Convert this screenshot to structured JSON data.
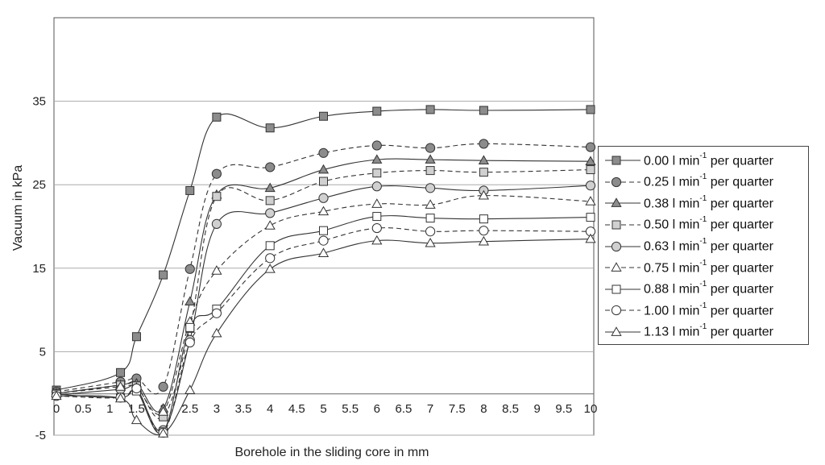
{
  "chart_data": {
    "type": "line",
    "title": "",
    "xlabel": "Borehole in the sliding core in mm",
    "ylabel": "Vacuum in kPa",
    "xlim": [
      0,
      10
    ],
    "ylim": [
      -5,
      45
    ],
    "x_ticks": [
      "0",
      "0.5",
      "1",
      "1.5",
      "2",
      "2.5",
      "3",
      "3.5",
      "4",
      "4.5",
      "5",
      "5.5",
      "6",
      "6.5",
      "7",
      "7.5",
      "8",
      "8.5",
      "9",
      "9.5",
      "10"
    ],
    "y_ticks": [
      "35",
      "25",
      "15",
      "5",
      "-5"
    ],
    "grid": "horizontal",
    "legend_position": "right",
    "x": [
      0,
      1.2,
      1.5,
      2,
      2.5,
      3,
      4,
      5,
      6,
      7,
      8,
      10
    ],
    "series": [
      {
        "name": "0.00 l min-1 per quarter",
        "label_main": "0.00 l min",
        "label_exp": "-1",
        "label_tail": " per quarter",
        "marker": "square",
        "fill": "#8c8c8c",
        "dash": "solid",
        "values": [
          0.4,
          2.5,
          6.8,
          14.2,
          24.3,
          33.1,
          31.8,
          33.2,
          33.8,
          34.0,
          33.9,
          34.0
        ]
      },
      {
        "name": "0.25 l min-1 per quarter",
        "label_main": "0.25 l min",
        "label_exp": "-1",
        "label_tail": " per quarter",
        "marker": "circle",
        "fill": "#8c8c8c",
        "dash": "dashed",
        "values": [
          0.2,
          1.4,
          1.8,
          0.8,
          14.9,
          26.3,
          27.1,
          28.8,
          29.7,
          29.4,
          29.9,
          29.5
        ]
      },
      {
        "name": "0.38 l min-1 per quarter",
        "label_main": "0.38 l min",
        "label_exp": "-1",
        "label_tail": " per quarter",
        "marker": "triangle",
        "fill": "#8c8c8c",
        "dash": "solid",
        "values": [
          0.0,
          1.0,
          1.2,
          -1.8,
          11.0,
          23.8,
          24.6,
          26.8,
          28.0,
          28.0,
          27.9,
          27.8
        ]
      },
      {
        "name": "0.50 l min-1 per quarter",
        "label_main": "0.50 l min",
        "label_exp": "-1",
        "label_tail": " per quarter",
        "marker": "square",
        "fill": "#d0d0d0",
        "dash": "dashed",
        "values": [
          0.0,
          1.0,
          0.9,
          -2.8,
          7.8,
          23.6,
          23.1,
          25.4,
          26.4,
          26.7,
          26.5,
          26.8
        ]
      },
      {
        "name": "0.63 l min-1 per quarter",
        "label_main": "0.63 l min",
        "label_exp": "-1",
        "label_tail": " per quarter",
        "marker": "circle",
        "fill": "#d0d0d0",
        "dash": "solid",
        "values": [
          -0.2,
          0.5,
          0.6,
          -4.4,
          6.4,
          20.3,
          21.6,
          23.4,
          24.8,
          24.6,
          24.3,
          24.9
        ]
      },
      {
        "name": "0.75 l min-1 per quarter",
        "label_main": "0.75 l min",
        "label_exp": "-1",
        "label_tail": " per quarter",
        "marker": "triangle",
        "fill": "#ffffff",
        "dash": "dashed",
        "values": [
          0.0,
          0.8,
          0.7,
          -2.2,
          8.6,
          14.7,
          20.1,
          21.8,
          22.7,
          22.6,
          23.7,
          23.0
        ]
      },
      {
        "name": "0.88 l min-1 per quarter",
        "label_main": "0.88 l min",
        "label_exp": "-1",
        "label_tail": " per quarter",
        "marker": "square",
        "fill": "#ffffff",
        "dash": "solid",
        "values": [
          -0.1,
          -0.5,
          0.3,
          -4.6,
          7.9,
          10.1,
          17.7,
          19.5,
          21.2,
          21.0,
          20.9,
          21.1
        ]
      },
      {
        "name": "1.00 l min-1 per quarter",
        "label_main": "1.00 l min",
        "label_exp": "-1",
        "label_tail": " per quarter",
        "marker": "circle",
        "fill": "#ffffff",
        "dash": "dashed",
        "values": [
          -0.3,
          -0.5,
          0.6,
          -4.7,
          6.1,
          9.6,
          16.2,
          18.3,
          19.8,
          19.4,
          19.5,
          19.4
        ]
      },
      {
        "name": "1.13 l min-1 per quarter",
        "label_main": "1.13 l min",
        "label_exp": "-1",
        "label_tail": " per quarter",
        "marker": "triangle",
        "fill": "#ffffff",
        "dash": "solid",
        "values": [
          -0.3,
          -0.6,
          -3.2,
          -4.8,
          0.4,
          7.2,
          14.9,
          16.8,
          18.3,
          18.0,
          18.2,
          18.5
        ]
      }
    ]
  }
}
